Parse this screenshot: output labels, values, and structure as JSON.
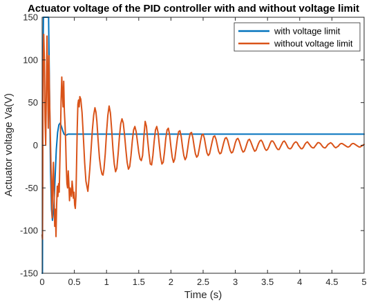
{
  "chart_data": {
    "type": "line",
    "title": "Actuator voltage of the PID controller with and without voltage limit",
    "xlabel": "Time (s)",
    "ylabel": "Actuator voltage Va(V)",
    "xlim": [
      0,
      5
    ],
    "ylim": [
      -150,
      150
    ],
    "xticks": [
      0,
      0.5,
      1,
      1.5,
      2,
      2.5,
      3,
      3.5,
      4,
      4.5,
      5
    ],
    "xtick_labels": [
      "0",
      "0.5",
      "1",
      "1.5",
      "2",
      "2.5",
      "3",
      "3.5",
      "4",
      "4.5",
      "5"
    ],
    "yticks": [
      -150,
      -100,
      -50,
      0,
      50,
      100,
      150
    ],
    "ytick_labels": [
      "-150",
      "-100",
      "-50",
      "0",
      "50",
      "100",
      "150"
    ],
    "grid": false,
    "legend_position": "top-right",
    "series": [
      {
        "name": "with voltage limit",
        "color": "#0072BD",
        "points": [
          [
            0,
            -150
          ],
          [
            0.005,
            -150
          ],
          [
            0.012,
            80
          ],
          [
            0.02,
            150
          ],
          [
            0.1,
            150
          ],
          [
            0.115,
            60
          ],
          [
            0.13,
            -30
          ],
          [
            0.145,
            -75
          ],
          [
            0.16,
            -88
          ],
          [
            0.18,
            -75
          ],
          [
            0.2,
            -40
          ],
          [
            0.22,
            -5
          ],
          [
            0.24,
            15
          ],
          [
            0.26,
            24
          ],
          [
            0.28,
            26
          ],
          [
            0.3,
            22
          ],
          [
            0.32,
            17
          ],
          [
            0.34,
            13
          ],
          [
            0.36,
            12
          ],
          [
            0.38,
            12
          ],
          [
            0.4,
            13
          ],
          [
            0.5,
            13
          ],
          [
            1.0,
            13
          ],
          [
            2.0,
            13
          ],
          [
            3.0,
            13
          ],
          [
            4.0,
            13
          ],
          [
            5.0,
            13
          ]
        ]
      },
      {
        "name": "without voltage limit",
        "color": "#D95319",
        "points": [
          [
            0,
            -105
          ],
          [
            0.005,
            -110
          ],
          [
            0.015,
            90
          ],
          [
            0.025,
            130
          ],
          [
            0.035,
            100
          ],
          [
            0.045,
            30
          ],
          [
            0.055,
            0
          ],
          [
            0.065,
            60
          ],
          [
            0.075,
            128
          ],
          [
            0.085,
            80
          ],
          [
            0.095,
            20
          ],
          [
            0.105,
            105
          ],
          [
            0.115,
            55
          ],
          [
            0.125,
            20
          ],
          [
            0.135,
            -15
          ],
          [
            0.145,
            -50
          ],
          [
            0.155,
            -85
          ],
          [
            0.165,
            -40
          ],
          [
            0.175,
            -20
          ],
          [
            0.185,
            -55
          ],
          [
            0.195,
            -95
          ],
          [
            0.205,
            -75
          ],
          [
            0.215,
            -107
          ],
          [
            0.225,
            -70
          ],
          [
            0.235,
            -48
          ],
          [
            0.245,
            -60
          ],
          [
            0.255,
            -45
          ],
          [
            0.265,
            -55
          ],
          [
            0.275,
            -20
          ],
          [
            0.285,
            15
          ],
          [
            0.295,
            55
          ],
          [
            0.305,
            80
          ],
          [
            0.315,
            60
          ],
          [
            0.325,
            45
          ],
          [
            0.335,
            75
          ],
          [
            0.345,
            40
          ],
          [
            0.355,
            25
          ],
          [
            0.365,
            5
          ],
          [
            0.375,
            -25
          ],
          [
            0.385,
            -45
          ],
          [
            0.395,
            -50
          ],
          [
            0.405,
            -30
          ],
          [
            0.415,
            -45
          ],
          [
            0.425,
            -65
          ],
          [
            0.435,
            -50
          ],
          [
            0.445,
            -55
          ],
          [
            0.455,
            -60
          ],
          [
            0.465,
            -42
          ],
          [
            0.475,
            -50
          ],
          [
            0.485,
            -62
          ],
          [
            0.495,
            -55
          ],
          [
            0.505,
            -70
          ],
          [
            0.515,
            -74
          ],
          [
            0.525,
            -60
          ],
          [
            0.535,
            -20
          ],
          [
            0.545,
            20
          ],
          [
            0.555,
            48
          ],
          [
            0.565,
            53
          ],
          [
            0.575,
            45
          ],
          [
            0.585,
            57
          ],
          [
            0.6,
            54
          ],
          [
            0.62,
            38
          ],
          [
            0.64,
            10
          ],
          [
            0.66,
            -20
          ],
          [
            0.68,
            -42
          ],
          [
            0.7,
            -50
          ],
          [
            0.71,
            -54
          ],
          [
            0.72,
            -46
          ],
          [
            0.74,
            -28
          ],
          [
            0.76,
            -5
          ],
          [
            0.78,
            18
          ],
          [
            0.8,
            35
          ],
          [
            0.82,
            44
          ],
          [
            0.835,
            39
          ],
          [
            0.85,
            28
          ],
          [
            0.87,
            5
          ],
          [
            0.89,
            -15
          ],
          [
            0.91,
            -27
          ],
          [
            0.93,
            -34
          ],
          [
            0.945,
            -35
          ],
          [
            0.96,
            -28
          ],
          [
            0.98,
            -10
          ],
          [
            1.0,
            15
          ],
          [
            1.02,
            35
          ],
          [
            1.04,
            46
          ],
          [
            1.06,
            38
          ],
          [
            1.08,
            18
          ],
          [
            1.1,
            -5
          ],
          [
            1.12,
            -22
          ],
          [
            1.14,
            -31
          ],
          [
            1.16,
            -27
          ],
          [
            1.18,
            -10
          ],
          [
            1.2,
            10
          ],
          [
            1.22,
            25
          ],
          [
            1.24,
            31
          ],
          [
            1.26,
            26
          ],
          [
            1.28,
            12
          ],
          [
            1.3,
            -5
          ],
          [
            1.32,
            -20
          ],
          [
            1.34,
            -28
          ],
          [
            1.36,
            -25
          ],
          [
            1.38,
            -12
          ],
          [
            1.4,
            5
          ],
          [
            1.42,
            18
          ],
          [
            1.44,
            22
          ],
          [
            1.46,
            16
          ],
          [
            1.48,
            4
          ],
          [
            1.5,
            -8
          ],
          [
            1.52,
            -16
          ],
          [
            1.54,
            -18
          ],
          [
            1.56,
            -12
          ],
          [
            1.58,
            10
          ],
          [
            1.6,
            28
          ],
          [
            1.62,
            22
          ],
          [
            1.64,
            5
          ],
          [
            1.66,
            -10
          ],
          [
            1.68,
            -22
          ],
          [
            1.7,
            -23
          ],
          [
            1.72,
            -12
          ],
          [
            1.74,
            5
          ],
          [
            1.76,
            18
          ],
          [
            1.78,
            22
          ],
          [
            1.8,
            15
          ],
          [
            1.82,
            0
          ],
          [
            1.84,
            -14
          ],
          [
            1.86,
            -22
          ],
          [
            1.88,
            -20
          ],
          [
            1.9,
            -8
          ],
          [
            1.92,
            8
          ],
          [
            1.94,
            18
          ],
          [
            1.96,
            20
          ],
          [
            1.98,
            12
          ],
          [
            2.0,
            -2
          ],
          [
            2.02,
            -14
          ],
          [
            2.04,
            -20
          ],
          [
            2.06,
            -16
          ],
          [
            2.08,
            -4
          ],
          [
            2.1,
            8
          ],
          [
            2.12,
            16
          ],
          [
            2.14,
            17
          ],
          [
            2.16,
            10
          ],
          [
            2.18,
            -2
          ],
          [
            2.2,
            -12
          ],
          [
            2.22,
            -17
          ],
          [
            2.24,
            -14
          ],
          [
            2.26,
            -4
          ],
          [
            2.28,
            7
          ],
          [
            2.3,
            14
          ],
          [
            2.32,
            15
          ],
          [
            2.34,
            9
          ],
          [
            2.36,
            -1
          ],
          [
            2.38,
            -10
          ],
          [
            2.4,
            -14
          ],
          [
            2.42,
            -12
          ],
          [
            2.44,
            -4
          ],
          [
            2.46,
            5
          ],
          [
            2.48,
            12
          ],
          [
            2.5,
            13
          ],
          [
            2.52,
            8
          ],
          [
            2.54,
            -1
          ],
          [
            2.56,
            -9
          ],
          [
            2.58,
            -12
          ],
          [
            2.6,
            -10
          ],
          [
            2.62,
            -3
          ],
          [
            2.64,
            4
          ],
          [
            2.66,
            10
          ],
          [
            2.68,
            11
          ],
          [
            2.7,
            7
          ],
          [
            2.72,
            0
          ],
          [
            2.74,
            -7
          ],
          [
            2.76,
            -10
          ],
          [
            2.78,
            -9
          ],
          [
            2.8,
            -3
          ],
          [
            2.82,
            3
          ],
          [
            2.84,
            8
          ],
          [
            2.86,
            9
          ],
          [
            2.88,
            6
          ],
          [
            2.9,
            0
          ],
          [
            2.92,
            -6
          ],
          [
            2.94,
            -9
          ],
          [
            2.96,
            -8
          ],
          [
            2.98,
            -3
          ],
          [
            3.0,
            3
          ],
          [
            3.02,
            7
          ],
          [
            3.04,
            8
          ],
          [
            3.06,
            5
          ],
          [
            3.08,
            0
          ],
          [
            3.1,
            -5
          ],
          [
            3.12,
            -8
          ],
          [
            3.14,
            -7
          ],
          [
            3.16,
            -3
          ],
          [
            3.18,
            2
          ],
          [
            3.2,
            6
          ],
          [
            3.22,
            7
          ],
          [
            3.24,
            4
          ],
          [
            3.26,
            0
          ],
          [
            3.28,
            -4
          ],
          [
            3.3,
            -7
          ],
          [
            3.32,
            -6
          ],
          [
            3.34,
            -2
          ],
          [
            3.36,
            2
          ],
          [
            3.38,
            5
          ],
          [
            3.4,
            6
          ],
          [
            3.42,
            4
          ],
          [
            3.44,
            0
          ],
          [
            3.46,
            -4
          ],
          [
            3.48,
            -6
          ],
          [
            3.5,
            -5
          ],
          [
            3.52,
            -2
          ],
          [
            3.54,
            2
          ],
          [
            3.56,
            5
          ],
          [
            3.58,
            5
          ],
          [
            3.6,
            3
          ],
          [
            3.62,
            0
          ],
          [
            3.64,
            -3
          ],
          [
            3.66,
            -5
          ],
          [
            3.68,
            -5
          ],
          [
            3.7,
            -2
          ],
          [
            3.72,
            1
          ],
          [
            3.74,
            4
          ],
          [
            3.76,
            5
          ],
          [
            3.78,
            3
          ],
          [
            3.8,
            0
          ],
          [
            3.82,
            -3
          ],
          [
            3.84,
            -4
          ],
          [
            3.86,
            -4
          ],
          [
            3.88,
            -2
          ],
          [
            3.9,
            1
          ],
          [
            3.92,
            3
          ],
          [
            3.94,
            4
          ],
          [
            3.96,
            3
          ],
          [
            3.98,
            0
          ],
          [
            4.0,
            -2
          ],
          [
            4.02,
            -4
          ],
          [
            4.04,
            -4
          ],
          [
            4.06,
            -2
          ],
          [
            4.08,
            1
          ],
          [
            4.1,
            3
          ],
          [
            4.12,
            4
          ],
          [
            4.14,
            2
          ],
          [
            4.16,
            0
          ],
          [
            4.18,
            -2
          ],
          [
            4.2,
            -3
          ],
          [
            4.22,
            -3
          ],
          [
            4.24,
            -1
          ],
          [
            4.26,
            1
          ],
          [
            4.28,
            3
          ],
          [
            4.3,
            3
          ],
          [
            4.32,
            2
          ],
          [
            4.34,
            0
          ],
          [
            4.36,
            -2
          ],
          [
            4.38,
            -3
          ],
          [
            4.4,
            -3
          ],
          [
            4.42,
            -1
          ],
          [
            4.44,
            1
          ],
          [
            4.46,
            2
          ],
          [
            4.48,
            3
          ],
          [
            4.5,
            2
          ],
          [
            4.52,
            0
          ],
          [
            4.54,
            -2
          ],
          [
            4.56,
            -3
          ],
          [
            4.58,
            -2
          ],
          [
            4.6,
            -1
          ],
          [
            4.62,
            1
          ],
          [
            4.64,
            2
          ],
          [
            4.66,
            2
          ],
          [
            4.68,
            1
          ],
          [
            4.7,
            0
          ],
          [
            4.72,
            -1
          ],
          [
            4.74,
            -2
          ],
          [
            4.76,
            -2
          ],
          [
            4.78,
            -1
          ],
          [
            4.8,
            1
          ],
          [
            4.82,
            2
          ],
          [
            4.84,
            2
          ],
          [
            4.86,
            1
          ],
          [
            4.88,
            0
          ],
          [
            4.9,
            -1
          ],
          [
            4.92,
            -2
          ],
          [
            4.94,
            -2
          ],
          [
            4.96,
            -1
          ],
          [
            4.98,
            0
          ],
          [
            5.0,
            1
          ]
        ]
      }
    ]
  }
}
